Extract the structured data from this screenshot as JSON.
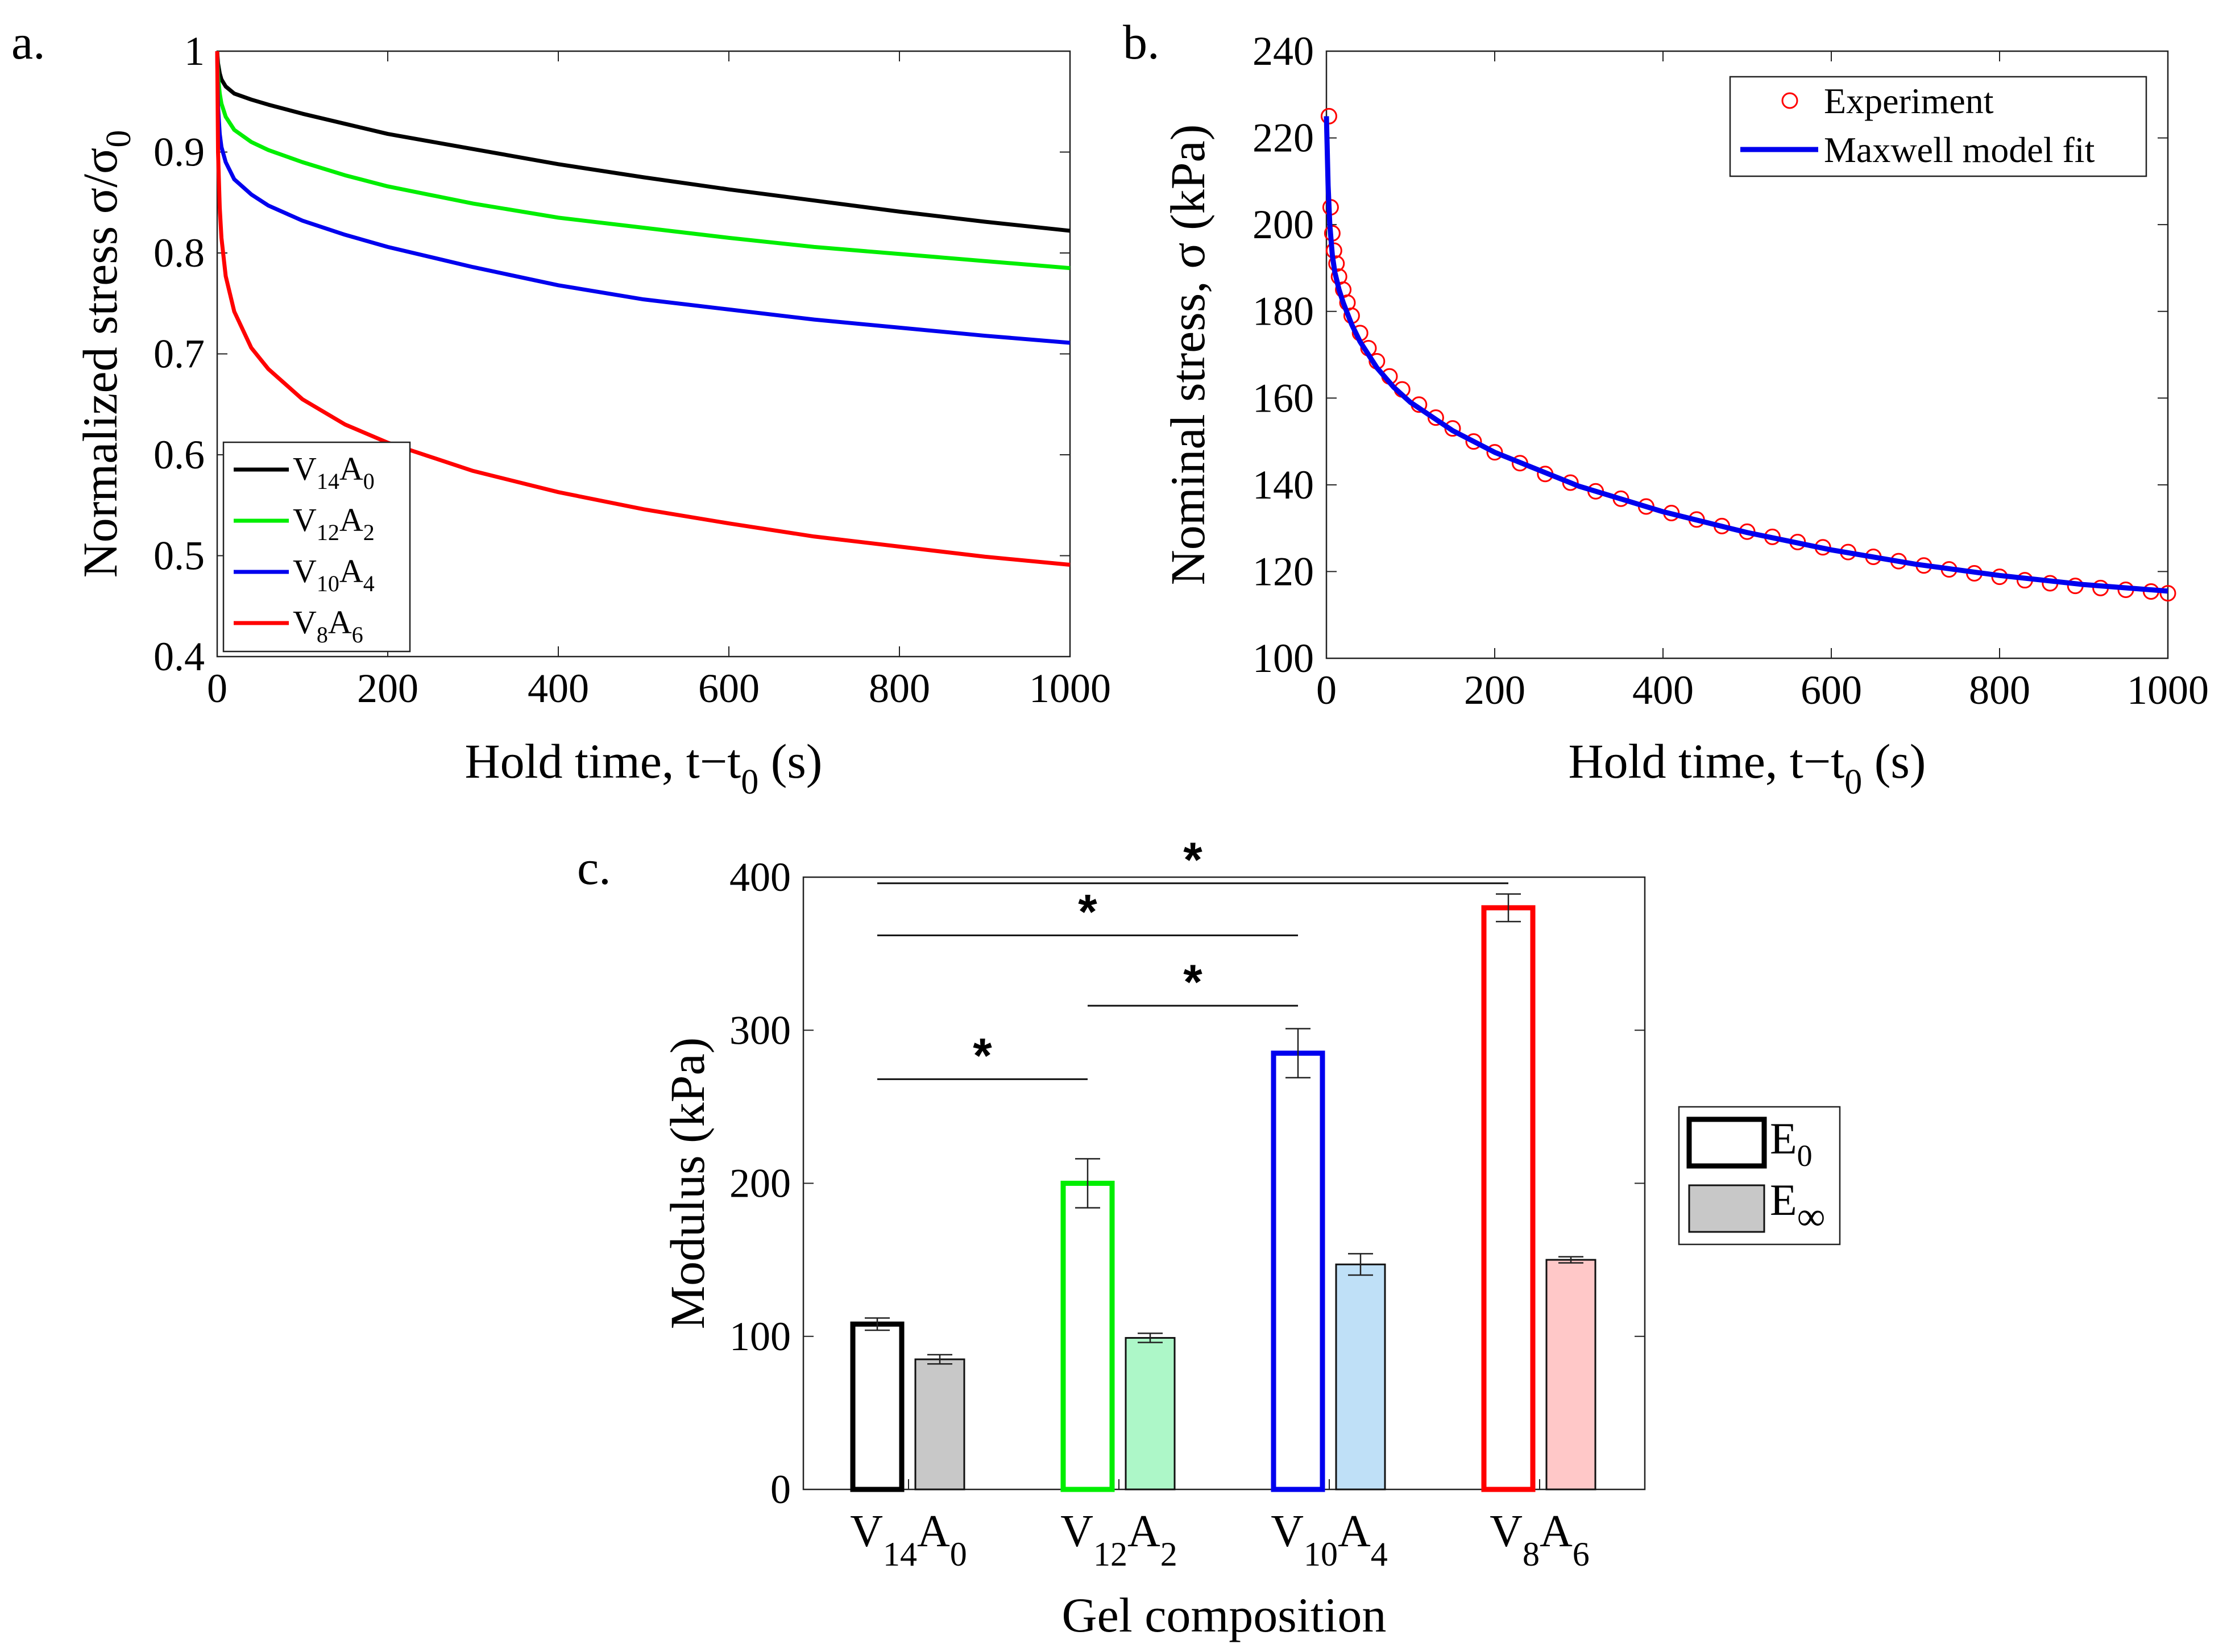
{
  "panel_labels": {
    "a": "a.",
    "b": "b.",
    "c": "c."
  },
  "chart_data": [
    {
      "id": "a",
      "type": "line",
      "title": "",
      "xlabel": "Hold time, t−t",
      "xlabel_sub": "0",
      "xlabel_unit": " (s)",
      "ylabel": "Normalized stress σ/σ",
      "ylabel_sub": "0",
      "xlim": [
        0,
        1000
      ],
      "ylim": [
        0.4,
        1
      ],
      "xticks": [
        0,
        200,
        400,
        600,
        800,
        1000
      ],
      "yticks": [
        0.4,
        0.5,
        0.6,
        0.7,
        0.8,
        0.9,
        1
      ],
      "ytick_labels": [
        "0.4",
        "0.5",
        "0.6",
        "0.7",
        "0.8",
        "0.9",
        "1"
      ],
      "x": [
        0,
        1,
        3,
        5,
        10,
        20,
        40,
        60,
        100,
        150,
        200,
        300,
        400,
        500,
        600,
        700,
        800,
        900,
        1000
      ],
      "series": [
        {
          "name": "V14A0",
          "base": "V",
          "sub1": "14",
          "mid": "A",
          "sub2": "0",
          "color": "#000000",
          "values": [
            1.0,
            0.988,
            0.978,
            0.972,
            0.965,
            0.958,
            0.952,
            0.947,
            0.938,
            0.928,
            0.918,
            0.903,
            0.888,
            0.875,
            0.863,
            0.852,
            0.841,
            0.831,
            0.822
          ]
        },
        {
          "name": "V12A2",
          "base": "V",
          "sub1": "12",
          "mid": "A",
          "sub2": "2",
          "color": "#00ee00",
          "values": [
            1.0,
            0.975,
            0.958,
            0.948,
            0.935,
            0.922,
            0.91,
            0.902,
            0.89,
            0.877,
            0.866,
            0.849,
            0.835,
            0.825,
            0.815,
            0.806,
            0.799,
            0.792,
            0.785
          ]
        },
        {
          "name": "V10A4",
          "base": "V",
          "sub1": "10",
          "mid": "A",
          "sub2": "4",
          "color": "#0000ee",
          "values": [
            1.0,
            0.945,
            0.918,
            0.905,
            0.89,
            0.873,
            0.858,
            0.847,
            0.832,
            0.818,
            0.806,
            0.786,
            0.768,
            0.754,
            0.744,
            0.734,
            0.726,
            0.718,
            0.711
          ]
        },
        {
          "name": "V8A6",
          "base": "V",
          "sub1": "8",
          "mid": "A",
          "sub2": "6",
          "color": "#ff0000",
          "values": [
            1.0,
            0.9,
            0.845,
            0.815,
            0.777,
            0.742,
            0.706,
            0.685,
            0.655,
            0.63,
            0.612,
            0.584,
            0.563,
            0.546,
            0.532,
            0.519,
            0.509,
            0.499,
            0.491
          ]
        }
      ]
    },
    {
      "id": "b",
      "type": "scatter",
      "title": "",
      "xlabel": "Hold time, t−t",
      "xlabel_sub": "0",
      "xlabel_unit": " (s)",
      "ylabel": "Nominal stress, σ (kPa)",
      "xlim": [
        0,
        1000
      ],
      "ylim": [
        100,
        240
      ],
      "xticks": [
        0,
        200,
        400,
        600,
        800,
        1000
      ],
      "yticks": [
        100,
        120,
        140,
        160,
        180,
        200,
        220,
        240
      ],
      "legend": {
        "experiment": "Experiment",
        "fit": "Maxwell model fit"
      },
      "experiment_color": "#ff0000",
      "fit_color": "#0000ee",
      "experiment_x": [
        3,
        5,
        7,
        9,
        12,
        15,
        20,
        25,
        30,
        40,
        50,
        60,
        75,
        90,
        110,
        130,
        150,
        175,
        200,
        230,
        260,
        290,
        320,
        350,
        380,
        410,
        440,
        470,
        500,
        530,
        560,
        590,
        620,
        650,
        680,
        710,
        740,
        770,
        800,
        830,
        860,
        890,
        920,
        950,
        980,
        1000
      ],
      "experiment_y": [
        225,
        204,
        198,
        194,
        191,
        188,
        185,
        182,
        179,
        175,
        171.5,
        168.5,
        165,
        162,
        158.5,
        155.5,
        153,
        150,
        147.5,
        145,
        142.5,
        140.5,
        138.5,
        136.8,
        135,
        133.5,
        132,
        130.5,
        129.2,
        128,
        126.8,
        125.6,
        124.5,
        123.4,
        122.4,
        121.4,
        120.5,
        119.6,
        118.8,
        118,
        117.3,
        116.7,
        116.2,
        115.8,
        115.4,
        115
      ],
      "fit_x": [
        0,
        2,
        4,
        7,
        10,
        15,
        20,
        30,
        40,
        60,
        80,
        100,
        150,
        200,
        300,
        400,
        500,
        600,
        700,
        800,
        900,
        1000
      ],
      "fit_y": [
        225,
        209,
        200,
        193,
        189,
        185,
        182,
        177,
        173,
        167,
        162.5,
        159,
        152.5,
        147.5,
        139.7,
        133.8,
        129,
        125,
        121.7,
        119.1,
        117,
        115.5
      ]
    },
    {
      "id": "c",
      "type": "bar",
      "title": "",
      "xlabel": "Gel composition",
      "ylabel": "Modulus (kPa)",
      "ylim": [
        0,
        400
      ],
      "yticks": [
        0,
        100,
        200,
        300,
        400
      ],
      "categories": [
        {
          "name": "V14A0",
          "base": "V",
          "sub1": "14",
          "mid": "A",
          "sub2": "0",
          "color": "#000000",
          "light": "#c8c8c8"
        },
        {
          "name": "V12A2",
          "base": "V",
          "sub1": "12",
          "mid": "A",
          "sub2": "2",
          "color": "#00ee00",
          "light": "#adf7c8"
        },
        {
          "name": "V10A4",
          "base": "V",
          "sub1": "10",
          "mid": "A",
          "sub2": "4",
          "color": "#0000ee",
          "light": "#bfe0f7"
        },
        {
          "name": "V8A6",
          "base": "V",
          "sub1": "8",
          "mid": "A",
          "sub2": "6",
          "color": "#ff0000",
          "light": "#ffc8c8"
        }
      ],
      "series": [
        {
          "name": "E0",
          "label_base": "E",
          "label_sub": "0",
          "values": [
            108,
            200,
            285,
            380
          ],
          "errors": [
            4,
            16,
            16,
            9
          ]
        },
        {
          "name": "E∞",
          "label_base": "E",
          "label_sub": "∞",
          "values": [
            85,
            99,
            147,
            150
          ],
          "errors": [
            3,
            3,
            7,
            2
          ]
        }
      ],
      "significance": [
        {
          "from": 0,
          "to": 1,
          "y": 268,
          "label": "*"
        },
        {
          "from": 1,
          "to": 2,
          "y": 316,
          "label": "*"
        },
        {
          "from": 0,
          "to": 2,
          "y": 362,
          "label": "*"
        },
        {
          "from": 0,
          "to": 3,
          "y": 396,
          "label": "*"
        }
      ]
    }
  ]
}
